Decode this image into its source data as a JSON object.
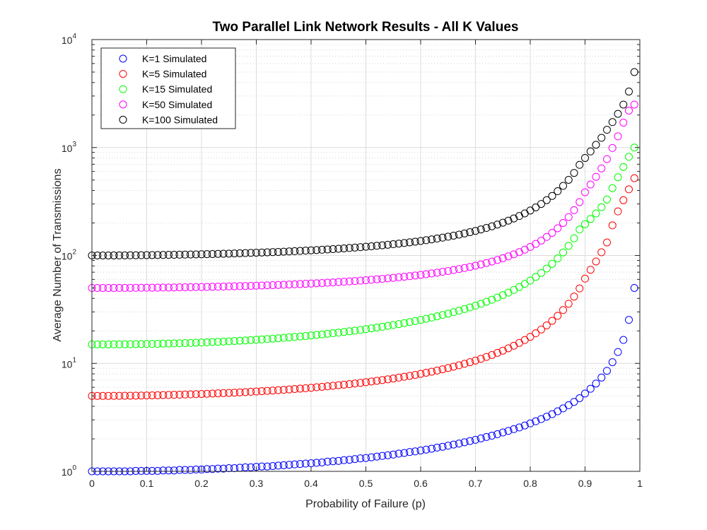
{
  "chart_data": {
    "type": "scatter",
    "title": "Two Parallel Link Network Results - All K Values",
    "xlabel": "Probability of Failure (p)",
    "ylabel": "Average Number of Transmissions",
    "xlim": [
      0,
      1
    ],
    "ylim": [
      1,
      10000
    ],
    "yscale": "log",
    "grid": true,
    "legend_position": "top-left",
    "x_ticks": [
      "0",
      "0.1",
      "0.2",
      "0.3",
      "0.4",
      "0.5",
      "0.6",
      "0.7",
      "0.8",
      "0.9",
      "1"
    ],
    "y_ticks": [
      {
        "value": 1,
        "base": "10",
        "exp": "0"
      },
      {
        "value": 10,
        "base": "10",
        "exp": "1"
      },
      {
        "value": 100,
        "base": "10",
        "exp": "2"
      },
      {
        "value": 1000,
        "base": "10",
        "exp": "3"
      },
      {
        "value": 10000,
        "base": "10",
        "exp": "4"
      }
    ],
    "x": [
      0,
      0.01,
      0.02,
      0.03,
      0.04,
      0.05,
      0.06,
      0.07,
      0.08,
      0.09,
      0.1,
      0.11,
      0.12,
      0.13,
      0.14,
      0.15,
      0.16,
      0.17,
      0.18,
      0.19,
      0.2,
      0.21,
      0.22,
      0.23,
      0.24,
      0.25,
      0.26,
      0.27,
      0.28,
      0.29,
      0.3,
      0.31,
      0.32,
      0.33,
      0.34,
      0.35,
      0.36,
      0.37,
      0.38,
      0.39,
      0.4,
      0.41,
      0.42,
      0.43,
      0.44,
      0.45,
      0.46,
      0.47,
      0.48,
      0.49,
      0.5,
      0.51,
      0.52,
      0.53,
      0.54,
      0.55,
      0.56,
      0.57,
      0.58,
      0.59,
      0.6,
      0.61,
      0.62,
      0.63,
      0.64,
      0.65,
      0.66,
      0.67,
      0.68,
      0.69,
      0.7,
      0.71,
      0.72,
      0.73,
      0.74,
      0.75,
      0.76,
      0.77,
      0.78,
      0.79,
      0.8,
      0.81,
      0.82,
      0.83,
      0.84,
      0.85,
      0.86,
      0.87,
      0.88,
      0.89,
      0.9,
      0.91,
      0.92,
      0.93,
      0.94,
      0.95,
      0.96,
      0.97,
      0.98,
      0.99
    ],
    "series": [
      {
        "name": "K=1 Simulated",
        "color": "#0000ff",
        "values": [
          1.0,
          1.0,
          1.0,
          1.0,
          1.0,
          1.0,
          1.0,
          1.0,
          1.01,
          1.01,
          1.01,
          1.01,
          1.01,
          1.02,
          1.02,
          1.02,
          1.03,
          1.03,
          1.03,
          1.04,
          1.04,
          1.05,
          1.05,
          1.06,
          1.06,
          1.07,
          1.07,
          1.08,
          1.09,
          1.09,
          1.1,
          1.11,
          1.11,
          1.12,
          1.13,
          1.14,
          1.15,
          1.16,
          1.17,
          1.18,
          1.19,
          1.2,
          1.21,
          1.23,
          1.24,
          1.25,
          1.27,
          1.28,
          1.3,
          1.32,
          1.33,
          1.35,
          1.37,
          1.39,
          1.41,
          1.43,
          1.46,
          1.48,
          1.51,
          1.53,
          1.56,
          1.59,
          1.62,
          1.66,
          1.69,
          1.73,
          1.77,
          1.81,
          1.86,
          1.91,
          1.96,
          2.02,
          2.08,
          2.14,
          2.21,
          2.29,
          2.37,
          2.46,
          2.55,
          2.66,
          2.78,
          2.91,
          3.05,
          3.21,
          3.39,
          3.6,
          3.83,
          4.1,
          4.4,
          4.76,
          5.26,
          5.82,
          6.51,
          7.39,
          8.54,
          10.26,
          12.76,
          16.5,
          25.3,
          50.0
        ]
      },
      {
        "name": "K=5 Simulated",
        "color": "#ff0000",
        "values": [
          5.0,
          5.0,
          5.0,
          5.0,
          5.01,
          5.01,
          5.02,
          5.02,
          5.03,
          5.04,
          5.05,
          5.06,
          5.07,
          5.09,
          5.1,
          5.12,
          5.13,
          5.15,
          5.17,
          5.19,
          5.21,
          5.23,
          5.26,
          5.28,
          5.31,
          5.33,
          5.36,
          5.39,
          5.42,
          5.46,
          5.49,
          5.53,
          5.57,
          5.61,
          5.65,
          5.69,
          5.74,
          5.79,
          5.84,
          5.89,
          5.95,
          6.01,
          6.07,
          6.14,
          6.21,
          6.28,
          6.35,
          6.43,
          6.52,
          6.6,
          6.7,
          6.8,
          6.9,
          7.01,
          7.13,
          7.25,
          7.38,
          7.52,
          7.67,
          7.83,
          8.0,
          8.19,
          8.38,
          8.59,
          8.82,
          9.06,
          9.33,
          9.61,
          9.92,
          10.26,
          10.63,
          11.04,
          11.48,
          11.97,
          12.52,
          13.13,
          13.81,
          14.59,
          15.47,
          16.47,
          17.64,
          19.0,
          20.6,
          22.5,
          24.8,
          27.6,
          31.2,
          35.7,
          41.6,
          49.5,
          61.0,
          73.7,
          88.0,
          107.0,
          132.0,
          190.0,
          256.0,
          325.0,
          410.0,
          520.0
        ]
      },
      {
        "name": "K=15 Simulated",
        "color": "#00ff00",
        "values": [
          15.0,
          15.0,
          15.0,
          15.0,
          15.02,
          15.03,
          15.04,
          15.06,
          15.08,
          15.11,
          15.13,
          15.16,
          15.2,
          15.24,
          15.28,
          15.33,
          15.38,
          15.43,
          15.49,
          15.55,
          15.62,
          15.69,
          15.77,
          15.85,
          15.94,
          16.03,
          16.12,
          16.23,
          16.33,
          16.45,
          16.57,
          16.69,
          16.82,
          16.96,
          17.11,
          17.26,
          17.42,
          17.59,
          17.77,
          17.95,
          18.15,
          18.36,
          18.57,
          18.8,
          19.04,
          19.29,
          19.56,
          19.84,
          20.13,
          20.44,
          20.76,
          21.11,
          21.47,
          21.85,
          22.26,
          22.69,
          23.14,
          23.63,
          24.15,
          24.69,
          25.28,
          25.91,
          26.58,
          27.3,
          28.07,
          28.91,
          29.81,
          30.78,
          31.85,
          33.01,
          34.28,
          35.67,
          37.2,
          38.9,
          40.79,
          42.9,
          45.26,
          47.94,
          50.99,
          54.49,
          58.55,
          63.3,
          68.92,
          75.66,
          83.83,
          93.92,
          106.7,
          122.7,
          144.0,
          174.0,
          195.0,
          218.0,
          245.0,
          280.0,
          330.0,
          420.0,
          530.0,
          660.0,
          820.0,
          1000.0
        ]
      },
      {
        "name": "K=50 Simulated",
        "color": "#ff00ff",
        "values": [
          50.0,
          50.0,
          50.01,
          50.02,
          50.04,
          50.06,
          50.09,
          50.12,
          50.16,
          50.2,
          50.25,
          50.31,
          50.37,
          50.43,
          50.5,
          50.58,
          50.66,
          50.75,
          50.84,
          50.94,
          51.05,
          51.16,
          51.28,
          51.4,
          51.54,
          51.68,
          51.83,
          51.98,
          52.15,
          52.32,
          52.5,
          52.7,
          52.9,
          53.11,
          53.34,
          53.58,
          53.82,
          54.08,
          54.36,
          54.64,
          54.94,
          55.26,
          55.6,
          55.95,
          56.32,
          56.71,
          57.13,
          57.56,
          58.02,
          58.5,
          59.01,
          59.55,
          60.12,
          60.72,
          61.36,
          62.03,
          62.75,
          63.51,
          64.33,
          65.19,
          66.12,
          67.11,
          68.16,
          69.3,
          70.52,
          71.84,
          73.26,
          74.81,
          76.5,
          78.35,
          80.37,
          82.6,
          85.06,
          87.79,
          90.84,
          94.25,
          98.11,
          102.5,
          107.5,
          113.3,
          120.0,
          127.9,
          137.3,
          148.5,
          162.1,
          178.8,
          199.9,
          227.0,
          262.9,
          312.4,
          385.0,
          454.0,
          535.0,
          640.0,
          780.0,
          990.0,
          1270.0,
          1700.0,
          2200.0,
          2500.0
        ]
      },
      {
        "name": "K=100 Simulated",
        "color": "#000000",
        "values": [
          100.0,
          100.0,
          100.03,
          100.06,
          100.11,
          100.17,
          100.24,
          100.33,
          100.43,
          100.54,
          100.66,
          100.8,
          100.95,
          101.11,
          101.28,
          101.47,
          101.67,
          101.88,
          102.11,
          102.35,
          102.6,
          102.87,
          103.15,
          103.45,
          103.77,
          104.1,
          104.45,
          104.82,
          105.2,
          105.6,
          106.03,
          106.47,
          106.93,
          107.42,
          107.93,
          108.47,
          109.03,
          109.61,
          110.23,
          110.87,
          111.55,
          112.26,
          113.0,
          113.78,
          114.6,
          115.46,
          116.37,
          117.33,
          118.33,
          119.4,
          120.52,
          121.71,
          122.96,
          124.29,
          125.7,
          127.2,
          128.8,
          130.5,
          132.3,
          134.2,
          136.3,
          138.5,
          140.9,
          143.5,
          146.3,
          149.3,
          152.6,
          156.1,
          160.0,
          164.3,
          169.0,
          174.2,
          179.9,
          186.3,
          193.4,
          201.3,
          210.3,
          220.4,
          232.0,
          245.3,
          260.7,
          278.8,
          300.1,
          325.6,
          356.4,
          394.1,
          441.3,
          501.8,
          581.4,
          691.0,
          800.0,
          920.0,
          1060.0,
          1230.0,
          1460.0,
          1720.0,
          2050.0,
          2500.0,
          3300.0,
          5000.0
        ]
      }
    ]
  }
}
